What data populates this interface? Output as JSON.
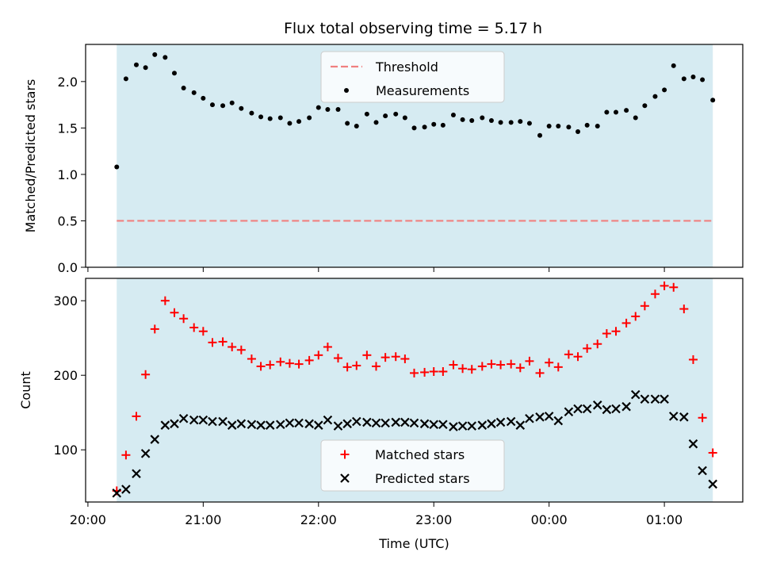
{
  "chart_data": {
    "type": "scatter",
    "title": "Flux total observing time = 5.17 h",
    "xlabel": "Time (UTC)",
    "x_ticks": [
      {
        "label": "20:00",
        "hour": 20.0
      },
      {
        "label": "21:00",
        "hour": 21.0
      },
      {
        "label": "22:00",
        "hour": 22.0
      },
      {
        "label": "23:00",
        "hour": 23.0
      },
      {
        "label": "00:00",
        "hour": 24.0
      },
      {
        "label": "01:00",
        "hour": 25.0
      }
    ],
    "xlim": [
      19.98,
      25.68
    ],
    "shaded_span": [
      20.25,
      25.42
    ],
    "colors": {
      "shade": "#add8e6",
      "threshold": "#f08080",
      "measurements": "#000000",
      "matched": "#ff0000",
      "predicted": "#000000"
    },
    "panels": [
      {
        "ylabel": "Matched/Predicted stars",
        "ylim": [
          0.0,
          2.4
        ],
        "y_ticks": [
          "0.0",
          "0.5",
          "1.0",
          "1.5",
          "2.0"
        ],
        "legend": {
          "position": "upper center",
          "entries": [
            "Threshold",
            "Measurements"
          ]
        },
        "threshold": {
          "name": "Threshold",
          "value": 0.5
        },
        "measurements": {
          "name": "Measurements",
          "x": [
            20.25,
            20.33,
            20.42,
            20.5,
            20.58,
            20.67,
            20.75,
            20.83,
            20.92,
            21.0,
            21.08,
            21.17,
            21.25,
            21.33,
            21.42,
            21.5,
            21.58,
            21.67,
            21.75,
            21.83,
            21.92,
            22.0,
            22.08,
            22.17,
            22.25,
            22.33,
            22.42,
            22.5,
            22.58,
            22.67,
            22.75,
            22.83,
            22.92,
            23.0,
            23.08,
            23.17,
            23.25,
            23.33,
            23.42,
            23.5,
            23.58,
            23.67,
            23.75,
            23.83,
            23.92,
            24.0,
            24.08,
            24.17,
            24.25,
            24.33,
            24.42,
            24.5,
            24.58,
            24.67,
            24.75,
            24.83,
            24.92,
            25.0,
            25.08,
            25.17,
            25.25,
            25.33,
            25.42
          ],
          "y": [
            1.08,
            2.03,
            2.18,
            2.15,
            2.29,
            2.26,
            2.09,
            1.93,
            1.88,
            1.82,
            1.75,
            1.74,
            1.77,
            1.71,
            1.66,
            1.62,
            1.6,
            1.61,
            1.55,
            1.57,
            1.61,
            1.72,
            1.7,
            1.7,
            1.55,
            1.52,
            1.65,
            1.56,
            1.63,
            1.65,
            1.61,
            1.5,
            1.51,
            1.54,
            1.53,
            1.64,
            1.59,
            1.58,
            1.61,
            1.58,
            1.56,
            1.56,
            1.57,
            1.55,
            1.42,
            1.52,
            1.52,
            1.51,
            1.46,
            1.53,
            1.52,
            1.67,
            1.67,
            1.69,
            1.61,
            1.74,
            1.84,
            1.91,
            2.17,
            2.03,
            2.05,
            2.02,
            1.8
          ]
        }
      },
      {
        "ylabel": "Count",
        "ylim": [
          30,
          330
        ],
        "y_ticks": [
          "100",
          "200",
          "300"
        ],
        "legend": {
          "position": "lower center",
          "entries": [
            "Matched stars",
            "Predicted stars"
          ]
        },
        "series": [
          {
            "name": "Matched stars",
            "marker": "+",
            "x": [
              20.25,
              20.33,
              20.42,
              20.5,
              20.58,
              20.67,
              20.75,
              20.83,
              20.92,
              21.0,
              21.08,
              21.17,
              21.25,
              21.33,
              21.42,
              21.5,
              21.58,
              21.67,
              21.75,
              21.83,
              21.92,
              22.0,
              22.08,
              22.17,
              22.25,
              22.33,
              22.42,
              22.5,
              22.58,
              22.67,
              22.75,
              22.83,
              22.92,
              23.0,
              23.08,
              23.17,
              23.25,
              23.33,
              23.42,
              23.5,
              23.58,
              23.67,
              23.75,
              23.83,
              23.92,
              24.0,
              24.08,
              24.17,
              24.25,
              24.33,
              24.42,
              24.5,
              24.58,
              24.67,
              24.75,
              24.83,
              24.92,
              25.0,
              25.08,
              25.17,
              25.25,
              25.33,
              25.42
            ],
            "y": [
              45,
              93,
              145,
              201,
              262,
              300,
              284,
              276,
              264,
              259,
              244,
              245,
              238,
              234,
              222,
              212,
              214,
              218,
              216,
              215,
              220,
              227,
              238,
              223,
              211,
              213,
              227,
              212,
              224,
              225,
              222,
              203,
              204,
              205,
              205,
              214,
              209,
              208,
              212,
              215,
              214,
              215,
              210,
              219,
              203,
              217,
              211,
              228,
              225,
              236,
              242,
              256,
              259,
              270,
              279,
              293,
              309,
              320,
              318,
              289,
              221,
              143,
              96
            ]
          },
          {
            "name": "Predicted stars",
            "marker": "x",
            "x": [
              20.25,
              20.33,
              20.42,
              20.5,
              20.58,
              20.67,
              20.75,
              20.83,
              20.92,
              21.0,
              21.08,
              21.17,
              21.25,
              21.33,
              21.42,
              21.5,
              21.58,
              21.67,
              21.75,
              21.83,
              21.92,
              22.0,
              22.08,
              22.17,
              22.25,
              22.33,
              22.42,
              22.5,
              22.58,
              22.67,
              22.75,
              22.83,
              22.92,
              23.0,
              23.08,
              23.17,
              23.25,
              23.33,
              23.42,
              23.5,
              23.58,
              23.67,
              23.75,
              23.83,
              23.92,
              24.0,
              24.08,
              24.17,
              24.25,
              24.33,
              24.42,
              24.5,
              24.58,
              24.67,
              24.75,
              24.83,
              24.92,
              25.0,
              25.08,
              25.17,
              25.25,
              25.33,
              25.42
            ],
            "y": [
              42,
              47,
              68,
              95,
              114,
              133,
              135,
              142,
              140,
              140,
              138,
              138,
              133,
              135,
              134,
              133,
              133,
              134,
              136,
              136,
              135,
              133,
              140,
              132,
              135,
              138,
              137,
              136,
              136,
              137,
              137,
              136,
              135,
              134,
              134,
              131,
              132,
              132,
              133,
              135,
              137,
              138,
              133,
              142,
              144,
              145,
              139,
              151,
              155,
              155,
              160,
              154,
              155,
              158,
              174,
              168,
              168,
              168,
              145,
              144,
              108,
              72,
              54
            ]
          }
        ]
      }
    ]
  }
}
